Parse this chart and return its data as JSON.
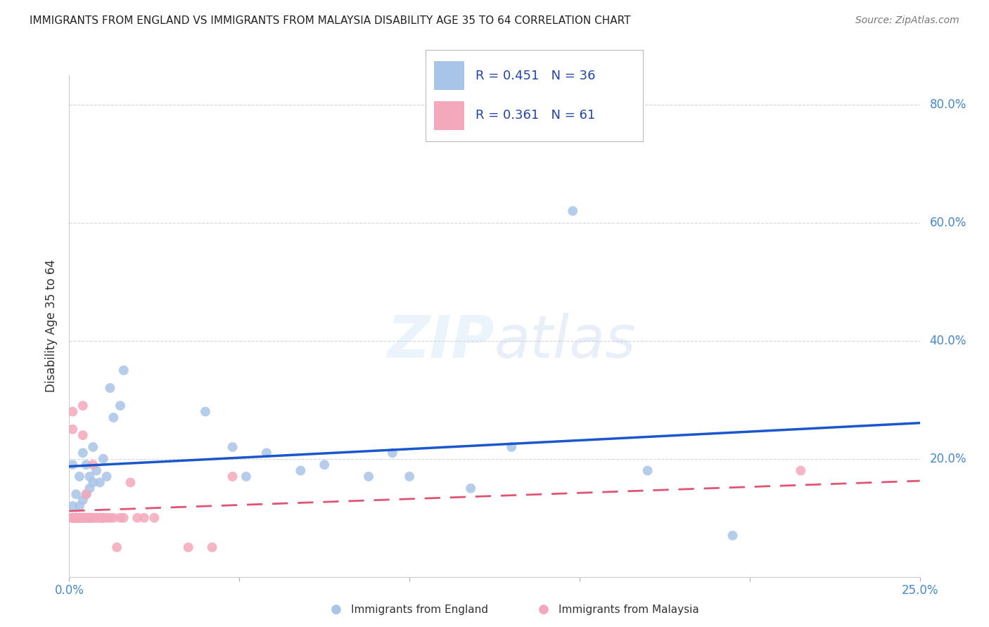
{
  "title": "IMMIGRANTS FROM ENGLAND VS IMMIGRANTS FROM MALAYSIA DISABILITY AGE 35 TO 64 CORRELATION CHART",
  "source": "Source: ZipAtlas.com",
  "ylabel": "Disability Age 35 to 64",
  "xlim": [
    0.0,
    0.25
  ],
  "ylim": [
    0.0,
    0.85
  ],
  "england_color": "#a8c4e8",
  "malaysia_color": "#f4a8bb",
  "england_line_color": "#1a56cc",
  "malaysia_line_color": "#e05575",
  "england_R": 0.451,
  "england_N": 36,
  "malaysia_R": 0.361,
  "malaysia_N": 61,
  "legend_R_color": "#2244aa",
  "watermark": "ZIPatlas",
  "england_x": [
    0.001,
    0.001,
    0.002,
    0.002,
    0.003,
    0.003,
    0.004,
    0.004,
    0.005,
    0.005,
    0.006,
    0.006,
    0.007,
    0.007,
    0.008,
    0.009,
    0.01,
    0.011,
    0.012,
    0.013,
    0.015,
    0.016,
    0.04,
    0.048,
    0.052,
    0.058,
    0.068,
    0.075,
    0.088,
    0.095,
    0.1,
    0.118,
    0.13,
    0.148,
    0.17,
    0.195
  ],
  "england_y": [
    0.12,
    0.19,
    0.14,
    0.1,
    0.12,
    0.17,
    0.21,
    0.13,
    0.14,
    0.19,
    0.15,
    0.17,
    0.16,
    0.22,
    0.18,
    0.16,
    0.2,
    0.17,
    0.32,
    0.27,
    0.29,
    0.35,
    0.28,
    0.22,
    0.17,
    0.21,
    0.18,
    0.19,
    0.17,
    0.21,
    0.17,
    0.15,
    0.22,
    0.62,
    0.18,
    0.07
  ],
  "malaysia_x": [
    0.001,
    0.001,
    0.001,
    0.001,
    0.001,
    0.001,
    0.001,
    0.001,
    0.002,
    0.002,
    0.002,
    0.002,
    0.002,
    0.002,
    0.002,
    0.002,
    0.003,
    0.003,
    0.003,
    0.003,
    0.003,
    0.003,
    0.004,
    0.004,
    0.004,
    0.004,
    0.004,
    0.004,
    0.005,
    0.005,
    0.005,
    0.005,
    0.006,
    0.006,
    0.006,
    0.006,
    0.007,
    0.007,
    0.007,
    0.007,
    0.008,
    0.008,
    0.009,
    0.009,
    0.01,
    0.01,
    0.01,
    0.011,
    0.012,
    0.013,
    0.014,
    0.015,
    0.016,
    0.018,
    0.02,
    0.022,
    0.025,
    0.035,
    0.042,
    0.048,
    0.215
  ],
  "malaysia_y": [
    0.1,
    0.1,
    0.1,
    0.1,
    0.1,
    0.1,
    0.25,
    0.28,
    0.1,
    0.1,
    0.1,
    0.1,
    0.1,
    0.1,
    0.1,
    0.1,
    0.1,
    0.1,
    0.1,
    0.1,
    0.1,
    0.1,
    0.1,
    0.1,
    0.1,
    0.24,
    0.29,
    0.1,
    0.1,
    0.14,
    0.1,
    0.1,
    0.1,
    0.1,
    0.1,
    0.1,
    0.1,
    0.1,
    0.19,
    0.1,
    0.1,
    0.1,
    0.1,
    0.1,
    0.1,
    0.1,
    0.1,
    0.1,
    0.1,
    0.1,
    0.05,
    0.1,
    0.1,
    0.16,
    0.1,
    0.1,
    0.1,
    0.05,
    0.05,
    0.17,
    0.18
  ],
  "background_color": "#ffffff",
  "grid_color": "#cccccc",
  "title_color": "#222222",
  "axis_color": "#4488cc"
}
